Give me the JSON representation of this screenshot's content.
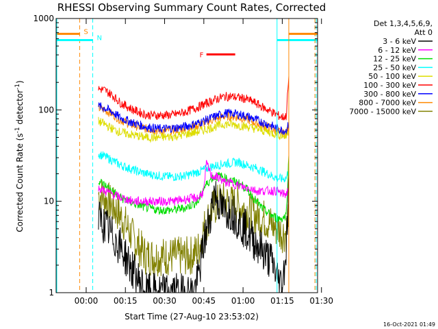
{
  "chart_data": {
    "type": "line",
    "title": "RHESSI Observing Summary Count Rates, Corrected",
    "xlabel": "Start Time (27-Aug-10 23:53:02)",
    "ylabel_main": "Corrected Count Rate (s",
    "ylabel_sup1": "-1",
    "ylabel_mid": " detector",
    "ylabel_sup2": "-1",
    "ylabel_end": ")",
    "yscale": "log",
    "ylim": [
      1,
      1000
    ],
    "xlim_minutes": [
      -4.5,
      95.5
    ],
    "x_ticks": [
      {
        "t": 7,
        "label": "00:00"
      },
      {
        "t": 22,
        "label": "00:15"
      },
      {
        "t": 37,
        "label": "00:30"
      },
      {
        "t": 52,
        "label": "00:45"
      },
      {
        "t": 67,
        "label": "01:00"
      },
      {
        "t": 82,
        "label": "01:15"
      },
      {
        "t": 97,
        "label": "01:30"
      }
    ],
    "y_ticks": [
      {
        "v": 1,
        "label": "1"
      },
      {
        "v": 10,
        "label": "10"
      },
      {
        "v": 100,
        "label": "100"
      },
      {
        "v": 1000,
        "label": "1000"
      }
    ],
    "legend_header": "Det 1,3,4,5,6,9,",
    "legend_att": "Att 0",
    "legend_position": "right",
    "series": [
      {
        "name": "3 - 6 keV",
        "color": "#000000",
        "x": [
          11.7,
          14,
          17,
          20,
          23,
          26,
          30,
          35,
          40,
          45,
          48,
          50,
          52,
          54,
          56,
          58,
          60,
          62,
          64,
          66,
          68,
          70,
          72,
          74,
          76,
          78,
          80,
          82,
          83.5,
          84.5
        ],
        "y": [
          6.5,
          5.5,
          4.2,
          3.2,
          2.2,
          1.5,
          1.0,
          1.0,
          1.0,
          1.0,
          1.0,
          1.5,
          3.5,
          6.0,
          13.0,
          9.0,
          7.5,
          8.0,
          7.0,
          5.5,
          5.0,
          4.0,
          3.5,
          3.0,
          2.5,
          2.2,
          1.5,
          1.2,
          3.0,
          15.0
        ]
      },
      {
        "name": "6 - 12 keV",
        "color": "#ff00ff",
        "x": [
          11.7,
          14,
          17,
          20,
          25,
          30,
          35,
          40,
          45,
          50,
          52,
          53,
          55,
          58,
          60,
          62,
          65,
          68,
          70,
          72,
          75,
          78,
          80,
          82,
          83.5,
          84.5
        ],
        "y": [
          14,
          13,
          12,
          11,
          10,
          10,
          10,
          10,
          10.5,
          11,
          13,
          26,
          19,
          18,
          16,
          16,
          15,
          14,
          14,
          13,
          13,
          13,
          13,
          12,
          12,
          14
        ]
      },
      {
        "name": "12 - 25 keV",
        "color": "#00dd00",
        "x": [
          11.7,
          14,
          17,
          20,
          25,
          30,
          35,
          40,
          45,
          50,
          52,
          55,
          58,
          60,
          62,
          65,
          68,
          70,
          72,
          75,
          78,
          80,
          82,
          83.5,
          84.5
        ],
        "y": [
          17,
          15,
          13,
          11,
          9.5,
          8.5,
          8,
          8,
          8.5,
          10,
          14,
          18,
          19,
          18,
          17,
          16,
          14,
          12,
          10,
          8,
          7,
          6.5,
          6.5,
          7,
          30
        ]
      },
      {
        "name": "25 - 50 keV",
        "color": "#00ffff",
        "x": [
          11.7,
          14,
          17,
          20,
          25,
          30,
          35,
          40,
          45,
          50,
          55,
          58,
          60,
          62,
          65,
          68,
          70,
          72,
          75,
          78,
          80,
          82,
          83.5,
          84.5
        ],
        "y": [
          33,
          31,
          28,
          25,
          22,
          20,
          19,
          18.5,
          19,
          21,
          24,
          25,
          26,
          26,
          27,
          25,
          24,
          23,
          21,
          19,
          18,
          17.5,
          18,
          22
        ]
      },
      {
        "name": "50 - 100 keV",
        "color": "#dddd00",
        "x": [
          11.7,
          14,
          17,
          20,
          25,
          30,
          35,
          40,
          45,
          50,
          55,
          58,
          60,
          62,
          65,
          68,
          70,
          72,
          75,
          78,
          80,
          82,
          83.5,
          84.5
        ],
        "y": [
          75,
          70,
          62,
          57,
          53,
          50,
          50,
          51,
          54,
          58,
          64,
          68,
          70,
          70,
          68,
          66,
          64,
          62,
          59,
          56,
          54,
          52,
          51,
          60
        ]
      },
      {
        "name": "100 - 300 keV",
        "color": "#ff0000",
        "x": [
          11.7,
          14,
          17,
          20,
          25,
          30,
          35,
          40,
          45,
          50,
          55,
          58,
          60,
          62,
          65,
          68,
          70,
          72,
          75,
          78,
          80,
          82,
          83.5,
          84.5
        ],
        "y": [
          170,
          165,
          145,
          120,
          100,
          88,
          87,
          88,
          95,
          108,
          125,
          135,
          140,
          140,
          137,
          132,
          125,
          118,
          105,
          95,
          88,
          83,
          85,
          230
        ]
      },
      {
        "name": "300 - 800 keV",
        "color": "#0000ff",
        "x": [
          11.7,
          14,
          17,
          20,
          25,
          30,
          35,
          40,
          45,
          50,
          55,
          58,
          60,
          62,
          65,
          68,
          70,
          72,
          75,
          78,
          80,
          82,
          83.5,
          84.5
        ],
        "y": [
          110,
          105,
          95,
          82,
          72,
          65,
          62,
          63,
          66,
          72,
          82,
          88,
          92,
          92,
          90,
          86,
          82,
          78,
          72,
          67,
          63,
          60,
          59,
          70
        ]
      },
      {
        "name": "800 - 7000 keV",
        "color": "#ff8800",
        "x": [
          11.7,
          14,
          17,
          20,
          25,
          30,
          35,
          40,
          45,
          50,
          55,
          58,
          60,
          62,
          65,
          68,
          70,
          72,
          75,
          78,
          80,
          82,
          83.5,
          84.5
        ],
        "y": [
          105,
          100,
          90,
          78,
          68,
          62,
          59,
          60,
          63,
          68,
          77,
          82,
          85,
          85,
          83,
          80,
          76,
          72,
          67,
          62,
          58,
          56,
          55,
          65
        ]
      },
      {
        "name": "7000 - 15000 keV",
        "color": "#808000",
        "x": [
          11.7,
          14,
          17,
          20,
          23,
          26,
          30,
          35,
          40,
          45,
          48,
          50,
          52,
          55,
          58,
          60,
          62,
          65,
          68,
          70,
          72,
          75,
          78,
          80,
          82,
          83.5,
          84.5
        ],
        "y": [
          12,
          11,
          9,
          7,
          5,
          3.5,
          2.5,
          2.5,
          2.5,
          2.5,
          2.6,
          3.0,
          5,
          8,
          10,
          10,
          9.5,
          9,
          8,
          7.5,
          7,
          6.5,
          5.5,
          5,
          4.5,
          4.5,
          9
        ]
      }
    ],
    "markers": [
      {
        "label": "S",
        "color": "#ff8800",
        "x0": -4.5,
        "x1": 4.5,
        "level": 680,
        "dashed_x": 4.5
      },
      {
        "label": "N",
        "color": "#00ffff",
        "x0": -4.5,
        "x1": 9.5,
        "level": 580,
        "dashed_x": 9.5
      },
      {
        "label": "F",
        "color": "#ff0000",
        "x0": 53,
        "x1": 64,
        "level": 405
      }
    ],
    "right_markers": [
      {
        "color": "#00ffff",
        "x0": 80,
        "x1": 95.5,
        "level": 580,
        "solid_x": 80,
        "dashed_x": 95
      },
      {
        "color": "#ff8800",
        "x0": 84.5,
        "x1": 95.5,
        "level": 680,
        "solid_x": 84.5,
        "dashed_x": 94.5
      }
    ],
    "left_cyan_x": -4.5
  },
  "footer": {
    "timestamp": "16-Oct-2021 01:49"
  }
}
